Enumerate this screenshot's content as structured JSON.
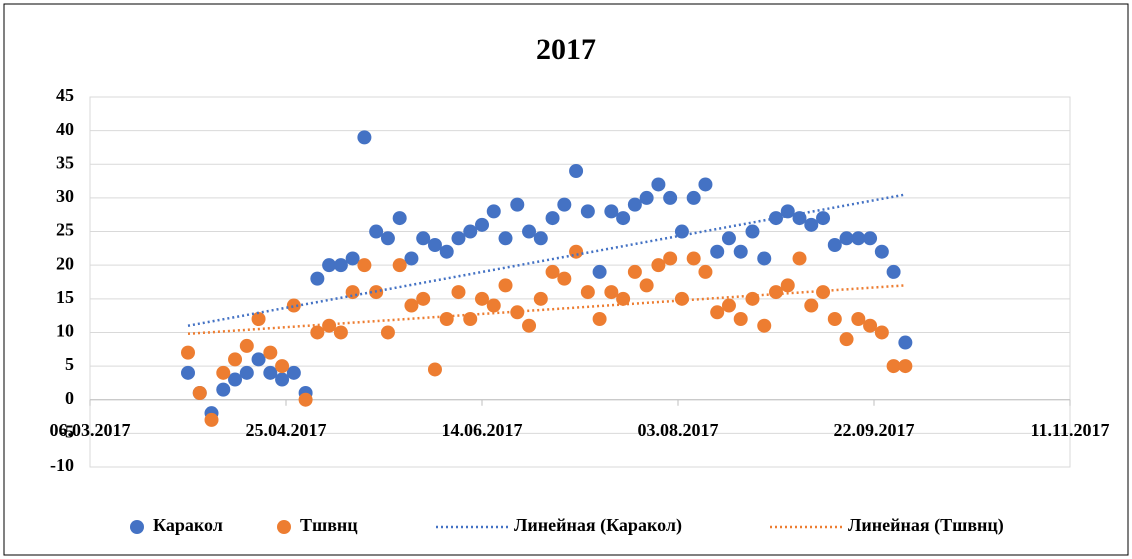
{
  "chart_data": {
    "type": "scatter",
    "title": "2017",
    "x": [
      "2017-03-31",
      "2017-04-03",
      "2017-04-06",
      "2017-04-09",
      "2017-04-12",
      "2017-04-15",
      "2017-04-18",
      "2017-04-21",
      "2017-04-24",
      "2017-04-27",
      "2017-04-30",
      "2017-05-03",
      "2017-05-06",
      "2017-05-09",
      "2017-05-12",
      "2017-05-15",
      "2017-05-18",
      "2017-05-21",
      "2017-05-24",
      "2017-05-27",
      "2017-05-30",
      "2017-06-02",
      "2017-06-05",
      "2017-06-08",
      "2017-06-11",
      "2017-06-14",
      "2017-06-17",
      "2017-06-20",
      "2017-06-23",
      "2017-06-26",
      "2017-06-29",
      "2017-07-02",
      "2017-07-05",
      "2017-07-08",
      "2017-07-11",
      "2017-07-14",
      "2017-07-17",
      "2017-07-20",
      "2017-07-23",
      "2017-07-26",
      "2017-07-29",
      "2017-08-01",
      "2017-08-04",
      "2017-08-07",
      "2017-08-10",
      "2017-08-13",
      "2017-08-16",
      "2017-08-19",
      "2017-08-22",
      "2017-08-25",
      "2017-08-28",
      "2017-08-31",
      "2017-09-03",
      "2017-09-06",
      "2017-09-09",
      "2017-09-12",
      "2017-09-15",
      "2017-09-18",
      "2017-09-21",
      "2017-09-24",
      "2017-09-27",
      "2017-09-30"
    ],
    "series": [
      {
        "name": "Каракол",
        "color": "#4472c4",
        "values": [
          4,
          1,
          -2,
          1.5,
          3,
          4,
          6,
          4,
          3,
          4,
          1,
          18,
          20,
          20,
          21,
          39,
          25,
          24,
          27,
          21,
          24,
          23,
          22,
          24,
          25,
          26,
          28,
          24,
          29,
          25,
          24,
          27,
          29,
          34,
          28,
          19,
          28,
          27,
          29,
          30,
          32,
          30,
          25,
          30,
          32,
          22,
          24,
          22,
          25,
          21,
          27,
          28,
          27,
          26,
          27,
          23,
          24,
          24,
          24,
          22,
          19,
          8.5
        ]
      },
      {
        "name": "Тшвнц",
        "color": "#ed7d31",
        "values": [
          7,
          1,
          -3,
          4,
          6,
          8,
          12,
          7,
          5,
          14,
          0,
          10,
          11,
          10,
          16,
          20,
          16,
          10,
          20,
          14,
          15,
          4.5,
          12,
          16,
          12,
          15,
          14,
          17,
          13,
          11,
          15,
          19,
          18,
          22,
          16,
          12,
          16,
          15,
          19,
          17,
          20,
          21,
          15,
          21,
          19,
          13,
          14,
          12,
          15,
          11,
          16,
          17,
          21,
          14,
          16,
          12,
          9,
          12,
          11,
          10,
          5,
          5
        ]
      },
      {
        "name": "Линейная (Каракол)",
        "color": "#4472c4",
        "line": "dotted",
        "x": [
          "2017-03-31",
          "2017-09-30"
        ],
        "values": [
          11,
          30.5
        ]
      },
      {
        "name": "Линейная (Тшвнц)",
        "color": "#ed7d31",
        "line": "dotted",
        "x": [
          "2017-03-31",
          "2017-09-30"
        ],
        "values": [
          9.8,
          17
        ]
      }
    ],
    "xlim": [
      "2017-03-06",
      "2017-11-11"
    ],
    "xticks": [
      {
        "value": "2017-03-06",
        "label": "06.03.2017"
      },
      {
        "value": "2017-04-25",
        "label": "25.04.2017"
      },
      {
        "value": "2017-06-14",
        "label": "14.06.2017"
      },
      {
        "value": "2017-08-03",
        "label": "03.08.2017"
      },
      {
        "value": "2017-09-22",
        "label": "22.09.2017"
      },
      {
        "value": "2017-11-11",
        "label": "11.11.2017"
      }
    ],
    "ylim": [
      -10,
      45
    ],
    "yticks": [
      -10,
      -5,
      0,
      5,
      10,
      15,
      20,
      25,
      30,
      35,
      40,
      45
    ],
    "grid": true,
    "legend": "bottom"
  }
}
